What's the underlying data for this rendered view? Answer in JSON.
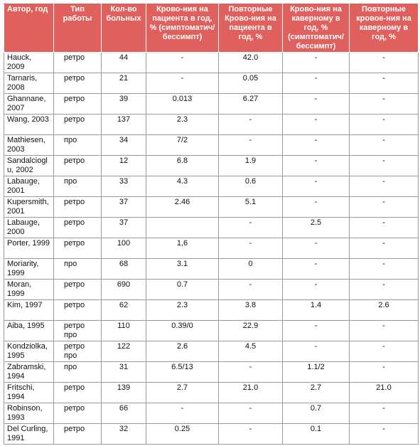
{
  "table": {
    "header": [
      "Автор, год",
      "Тип работы",
      "Кол-во больных",
      "Крово-ния на пациента в год, % (симптоматич/бессимпт)",
      "Повторные Крово-ния на пациента в год, %",
      "Крово-ния на каверному в год, % (симптоматич/бессимпт)",
      "Повторные кровое-ния на каверному в год, %"
    ],
    "rows": [
      [
        "Hauck, 2009",
        "ретро",
        "44",
        "-",
        "42.0",
        "-",
        "-"
      ],
      [
        "Tarnaris, 2008",
        "ретро",
        "21",
        "-",
        "0.05",
        "-",
        "-"
      ],
      [
        "Ghannane, 2007",
        "ретро",
        "39",
        "0.013",
        "6.27",
        "-",
        "-"
      ],
      [
        "Wang, 2003",
        "ретро",
        "137",
        "2.3",
        "-",
        "-",
        "-"
      ],
      [
        "Mathiesen, 2003",
        "про",
        "34",
        "7/2",
        "-",
        "-",
        "-"
      ],
      [
        "Sandalcioglu, 2002",
        "ретро",
        "12",
        "6.8",
        "1.9",
        "-",
        "-"
      ],
      [
        "Labauge, 2001",
        "про",
        "33",
        "4.3",
        "0.6",
        "-",
        "-"
      ],
      [
        "Kupersmith, 2001",
        "ретро",
        "37",
        "2.46",
        "5.1",
        "-",
        "-"
      ],
      [
        "Labauge, 2000",
        "ретро",
        "37",
        null,
        "-",
        "2.5",
        "-"
      ],
      [
        "Porter, 1999",
        "ретро",
        "100",
        "1,6",
        "-",
        "-",
        "-"
      ],
      [
        "Moriarity, 1999",
        "про",
        "68",
        "3.1",
        "0",
        "-",
        "-"
      ],
      [
        "Moran, 1999",
        "ретро",
        "690",
        "0.7",
        "-",
        "-",
        "-"
      ],
      [
        "Kim, 1997",
        "ретро",
        "62",
        "2.3",
        "3.8",
        "1.4",
        "2.6"
      ],
      [
        "Aiba, 1995",
        "ретро про",
        "110",
        "0.39/0",
        "22.9",
        "-",
        "-"
      ],
      [
        "Kondziolka, 1995",
        "ретро про",
        "122",
        "2.6",
        "4.5",
        "-",
        "-"
      ],
      [
        "Zabramski, 1994",
        "про",
        "31",
        "6.5/13",
        "-",
        "1.1/2",
        "-"
      ],
      [
        "Fritschi, 1994",
        "ретро",
        "139",
        "2.7",
        "21.0",
        "2.7",
        "21.0"
      ],
      [
        "Robinson, 1993",
        "ретро",
        "66",
        "-",
        "-",
        "0.7",
        "-"
      ],
      [
        "Del Curling, 1991",
        "ретро",
        "32",
        "0.25",
        "-",
        "0.1",
        "-"
      ]
    ]
  }
}
